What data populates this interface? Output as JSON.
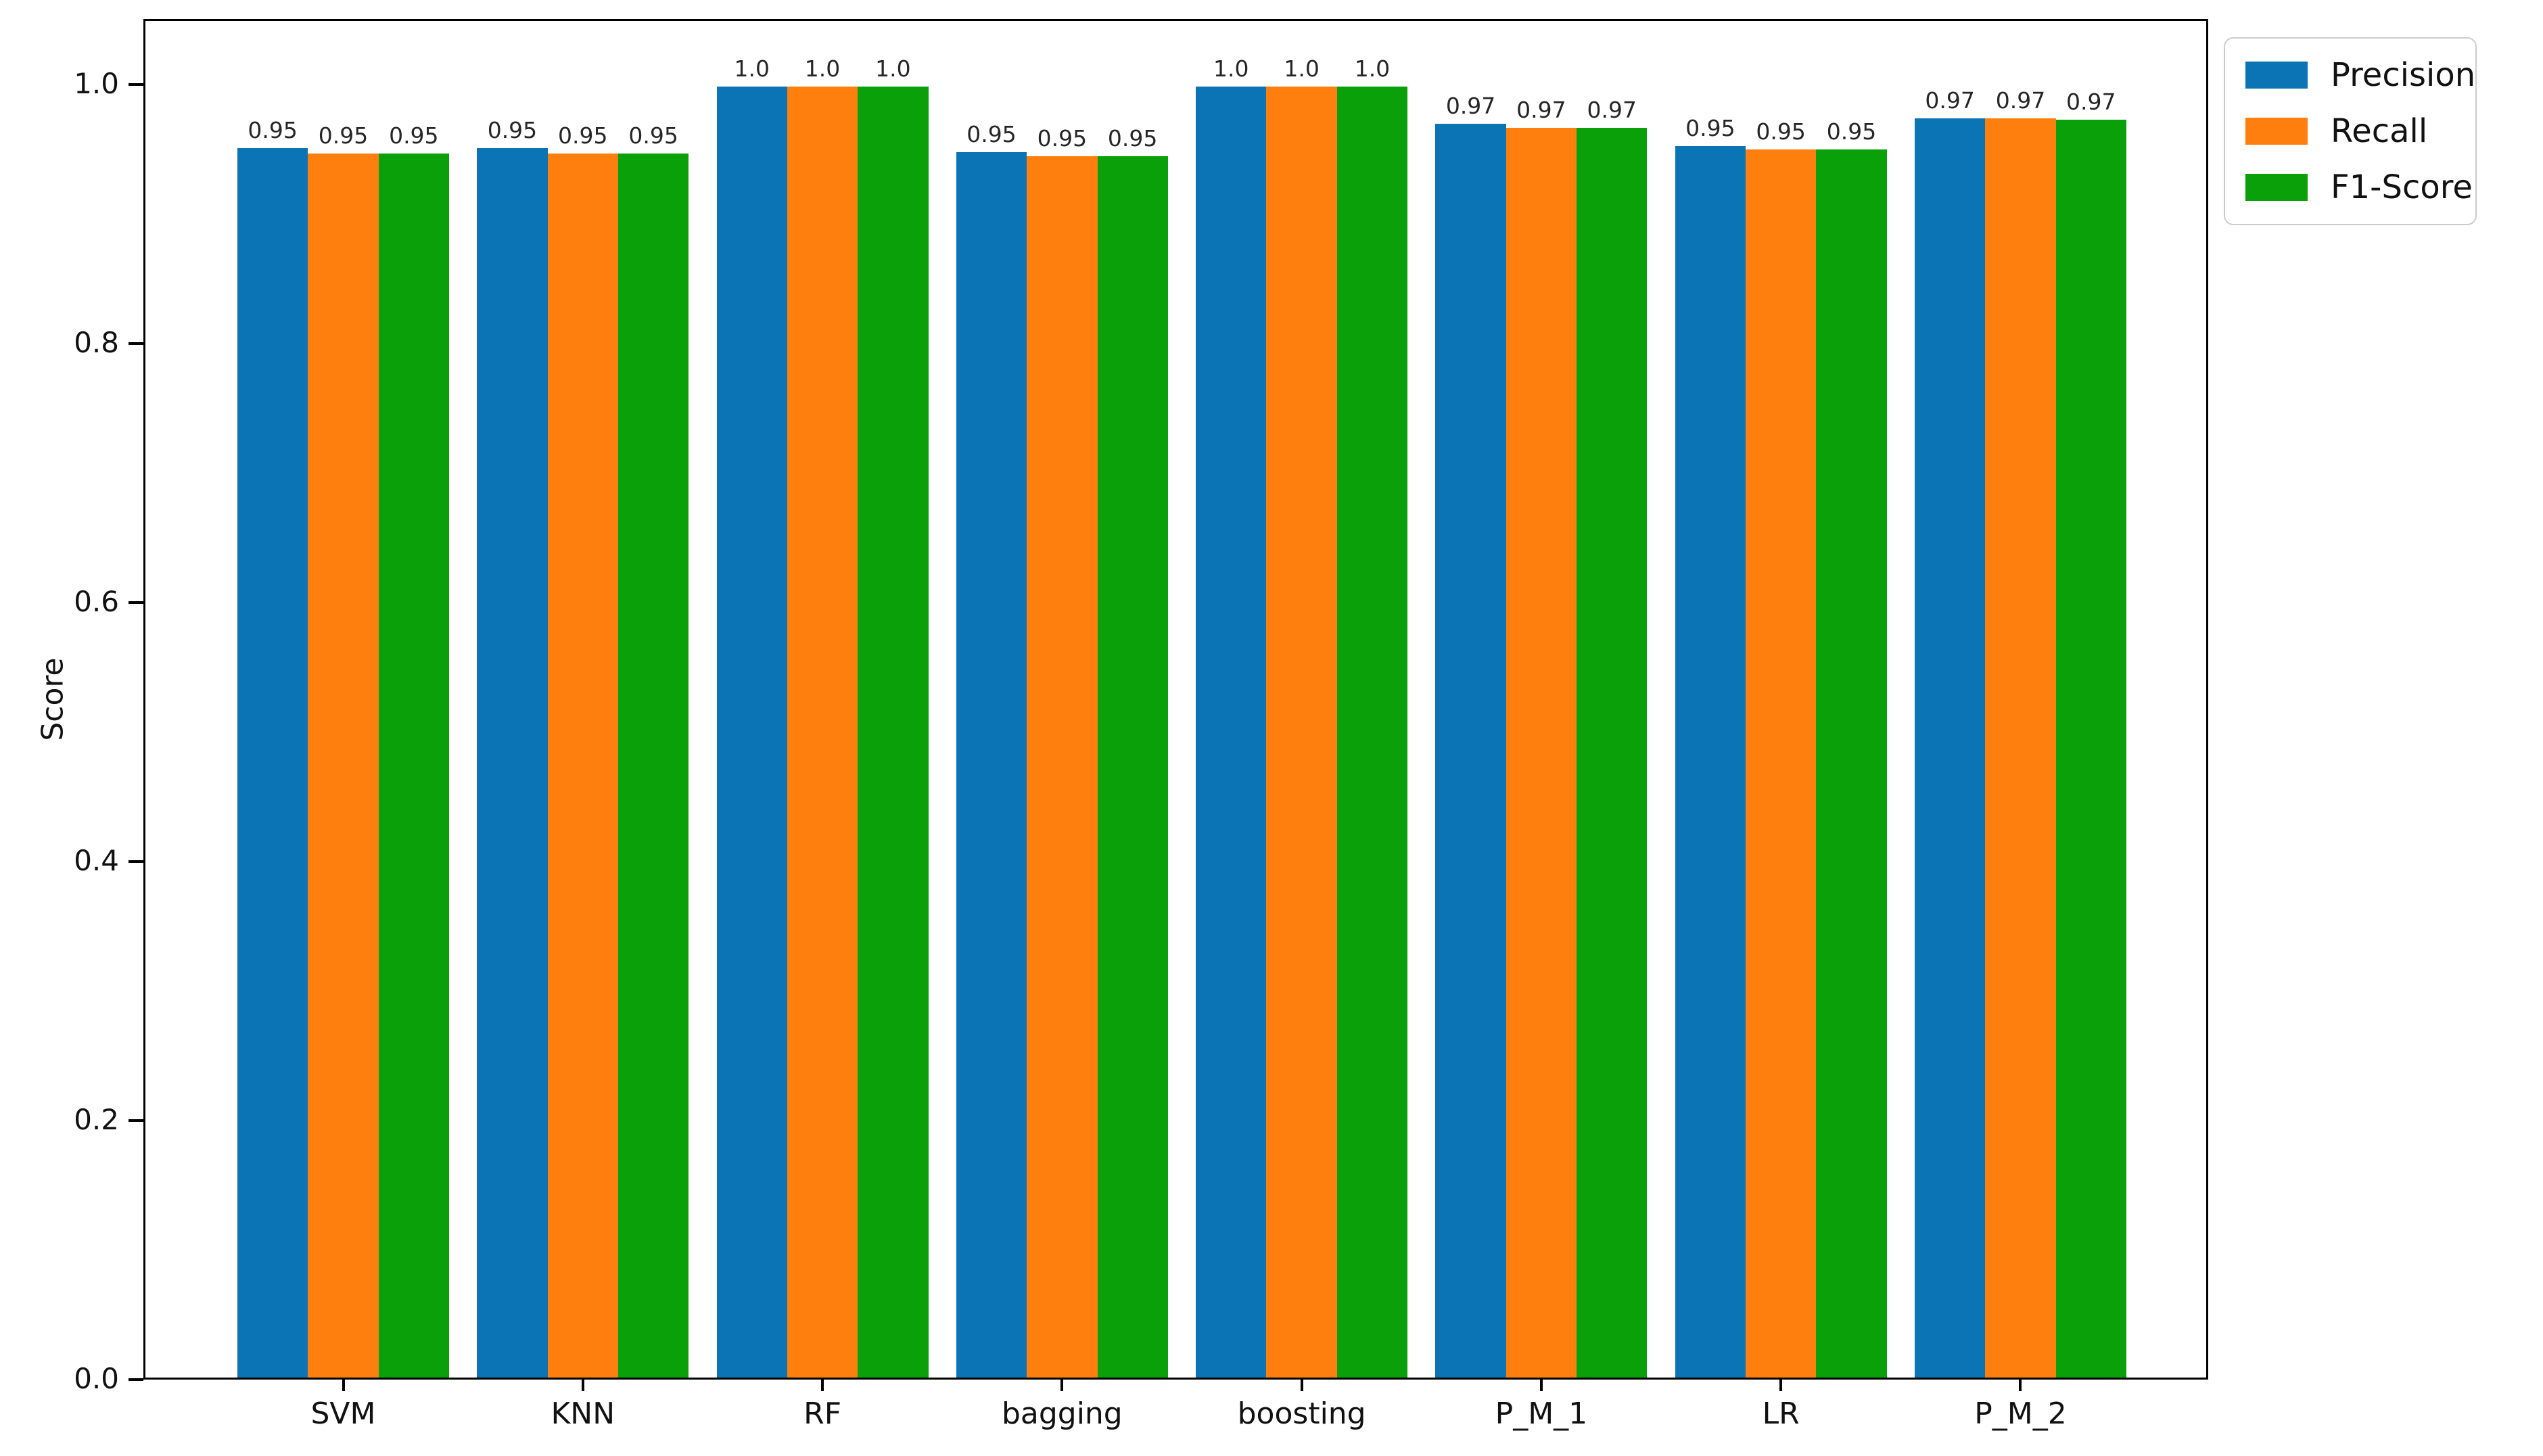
{
  "chart_data": {
    "type": "bar",
    "title": "",
    "xlabel": "",
    "ylabel": "Score",
    "background": "#ffffff",
    "grid": false,
    "ylim": [
      0,
      1.05
    ],
    "categories": [
      "SVM",
      "KNN",
      "RF",
      "bagging",
      "boosting",
      "P_M_1",
      "LR",
      "P_M_2"
    ],
    "series": [
      {
        "name": "Precision",
        "color": "#0b74b4",
        "values": [
          0.952,
          0.952,
          1.0,
          0.949,
          1.0,
          0.971,
          0.954,
          0.975
        ],
        "labels": [
          "0.95",
          "0.95",
          "1.0",
          "0.95",
          "1.0",
          "0.97",
          "0.95",
          "0.97"
        ]
      },
      {
        "name": "Recall",
        "color": "#ff7f0e",
        "values": [
          0.948,
          0.948,
          1.0,
          0.946,
          1.0,
          0.968,
          0.951,
          0.975
        ],
        "labels": [
          "0.95",
          "0.95",
          "1.0",
          "0.95",
          "1.0",
          "0.97",
          "0.95",
          "0.97"
        ]
      },
      {
        "name": "F1-Score",
        "color": "#09a009",
        "values": [
          0.948,
          0.948,
          1.0,
          0.946,
          1.0,
          0.968,
          0.951,
          0.974
        ],
        "labels": [
          "0.95",
          "0.95",
          "1.0",
          "0.95",
          "1.0",
          "0.97",
          "0.95",
          "0.97"
        ]
      }
    ],
    "yticks": [
      {
        "value": 0.0,
        "label": "0.0"
      },
      {
        "value": 0.2,
        "label": "0.2"
      },
      {
        "value": 0.4,
        "label": "0.4"
      },
      {
        "value": 0.6,
        "label": "0.6"
      },
      {
        "value": 0.8,
        "label": "0.8"
      },
      {
        "value": 1.0,
        "label": "1.0"
      }
    ],
    "legend": {
      "position": "outside-upper-right",
      "entries": [
        "Precision",
        "Recall",
        "F1-Score"
      ]
    }
  }
}
